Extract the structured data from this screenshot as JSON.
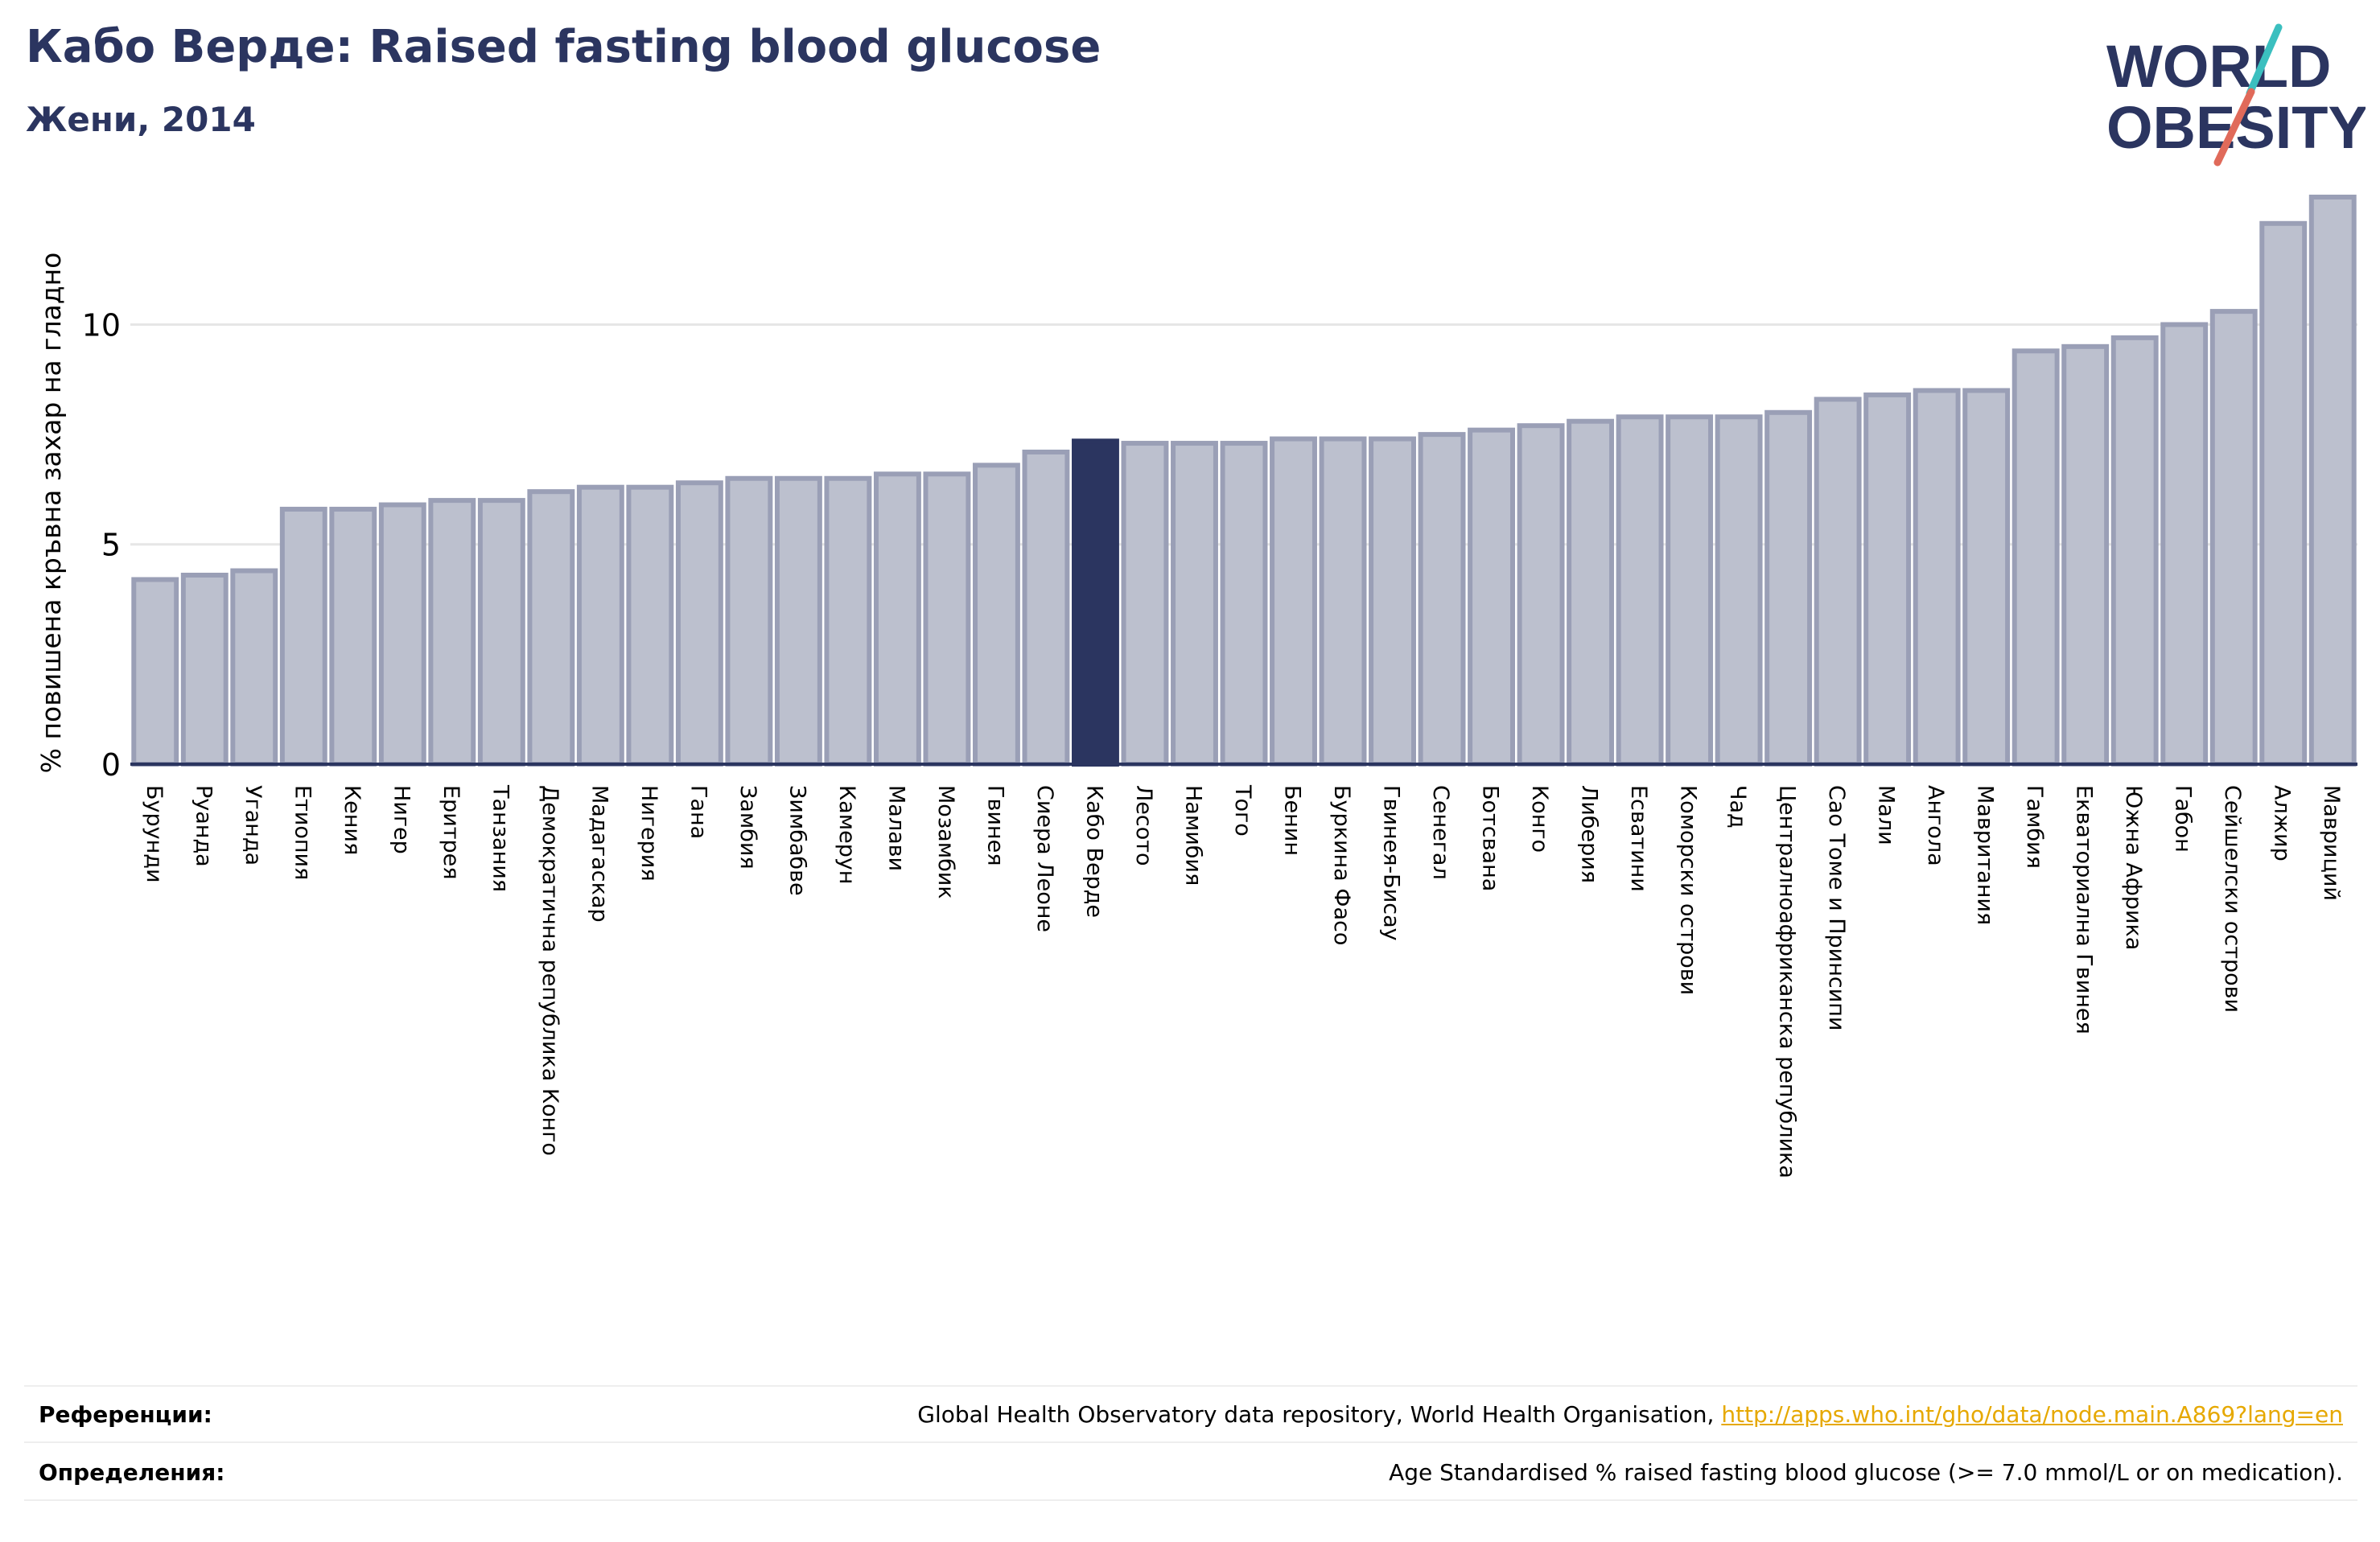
{
  "header": {
    "title": "Кабо Верде: Raised fasting blood glucose",
    "subtitle": "Жени, 2014"
  },
  "logo": {
    "line1": "WORLD",
    "line2": "OBESITY",
    "colors": {
      "text": "#2b3560",
      "accent_teal": "#3bbfbf",
      "accent_red": "#e06a5a"
    }
  },
  "colors": {
    "bar_fill": "#bcc0ce",
    "bar_stroke": "#9a9fb6",
    "highlight": "#2b3560",
    "grid": "#e6e6e6",
    "baseline": "#2b3560"
  },
  "chart_data": {
    "type": "bar",
    "title": "",
    "xlabel": "",
    "ylabel": "% повишена кръвна захар на гладно",
    "ylim": [
      0,
      12.9
    ],
    "yticks": [
      0,
      5,
      10
    ],
    "grid": true,
    "highlight_category": "Кабо Верде",
    "categories": [
      "Бурунди",
      "Руанда",
      "Уганда",
      "Етиопия",
      "Кения",
      "Нигер",
      "Еритрея",
      "Танзания",
      "Демократична република Конго",
      "Мадагаскар",
      "Нигерия",
      "Гана",
      "Замбия",
      "Зимбабве",
      "Камерун",
      "Малави",
      "Мозамбик",
      "Гвинея",
      "Сиера Леоне",
      "Кабо Верде",
      "Лесото",
      "Намибия",
      "Того",
      "Бенин",
      "Буркина Фасо",
      "Гвинея-Бисау",
      "Сенегал",
      "Ботсвана",
      "Конго",
      "Либерия",
      "Есватини",
      "Коморски острови",
      "Чад",
      "Централноафриканска република",
      "Сао Томе и Принсипи",
      "Мали",
      "Ангола",
      "Мавритания",
      "Гамбия",
      "Екваториална Гвинея",
      "Южна Африка",
      "Габон",
      "Сейшелски острови",
      "Алжир",
      "Мавриций"
    ],
    "values": [
      4.2,
      4.3,
      4.4,
      5.8,
      5.8,
      5.9,
      6.0,
      6.0,
      6.2,
      6.3,
      6.3,
      6.4,
      6.5,
      6.5,
      6.5,
      6.6,
      6.6,
      6.8,
      7.1,
      7.35,
      7.3,
      7.3,
      7.3,
      7.4,
      7.4,
      7.4,
      7.5,
      7.6,
      7.7,
      7.8,
      7.9,
      7.9,
      7.9,
      8.0,
      8.3,
      8.4,
      8.5,
      8.5,
      9.4,
      9.5,
      9.7,
      10.0,
      10.3,
      12.3,
      12.9
    ]
  },
  "references": {
    "label": "Референции:",
    "text": "Global Health Observatory data repository, World Health Organisation, ",
    "link": "http://apps.who.int/gho/data/node.main.A869?lang=en"
  },
  "definitions": {
    "label": "Определения:",
    "text": "Age Standardised % raised fasting blood glucose (>= 7.0 mmol/L or on medication)."
  }
}
